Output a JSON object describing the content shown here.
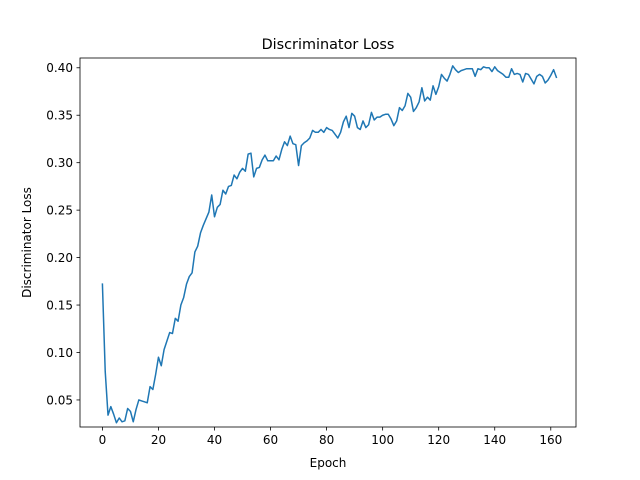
{
  "chart_data": {
    "type": "line",
    "title": "Discriminator Loss",
    "xlabel": "Epoch",
    "ylabel": "Discriminator Loss",
    "xlim": [
      -8,
      169
    ],
    "ylim": [
      0.0215,
      0.4103
    ],
    "xticks": [
      0,
      20,
      40,
      60,
      80,
      100,
      120,
      140,
      160
    ],
    "xtick_labels": [
      "0",
      "20",
      "40",
      "60",
      "80",
      "100",
      "120",
      "140",
      "160"
    ],
    "yticks": [
      0.05,
      0.1,
      0.15,
      0.2,
      0.25,
      0.3,
      0.35,
      0.4
    ],
    "ytick_labels": [
      "0.05",
      "0.10",
      "0.15",
      "0.20",
      "0.25",
      "0.30",
      "0.35",
      "0.40"
    ],
    "grid": false,
    "color": "#1f77b4",
    "series": [
      {
        "values": [
          0.172,
          0.08,
          0.034,
          0.043,
          0.035,
          0.026,
          0.031,
          0.027,
          0.028,
          0.041,
          0.038,
          0.027,
          0.04,
          0.05,
          0.049,
          0.048,
          0.047,
          0.064,
          0.061,
          0.077,
          0.095,
          0.086,
          0.103,
          0.112,
          0.121,
          0.12,
          0.136,
          0.133,
          0.15,
          0.158,
          0.172,
          0.18,
          0.184,
          0.206,
          0.212,
          0.226,
          0.234,
          0.241,
          0.248,
          0.266,
          0.243,
          0.253,
          0.256,
          0.271,
          0.267,
          0.275,
          0.276,
          0.287,
          0.283,
          0.29,
          0.294,
          0.291,
          0.309,
          0.31,
          0.285,
          0.294,
          0.295,
          0.303,
          0.308,
          0.302,
          0.302,
          0.302,
          0.307,
          0.303,
          0.314,
          0.322,
          0.318,
          0.328,
          0.32,
          0.319,
          0.297,
          0.318,
          0.321,
          0.323,
          0.326,
          0.334,
          0.332,
          0.332,
          0.335,
          0.332,
          0.337,
          0.335,
          0.334,
          0.33,
          0.326,
          0.332,
          0.343,
          0.349,
          0.337,
          0.352,
          0.349,
          0.337,
          0.335,
          0.344,
          0.337,
          0.34,
          0.353,
          0.345,
          0.348,
          0.348,
          0.35,
          0.351,
          0.351,
          0.346,
          0.339,
          0.344,
          0.358,
          0.355,
          0.36,
          0.373,
          0.369,
          0.354,
          0.358,
          0.364,
          0.379,
          0.365,
          0.369,
          0.366,
          0.381,
          0.372,
          0.38,
          0.393,
          0.389,
          0.386,
          0.393,
          0.402,
          0.398,
          0.395,
          0.397,
          0.398,
          0.399,
          0.399,
          0.399,
          0.391,
          0.399,
          0.398,
          0.401,
          0.4,
          0.4,
          0.396,
          0.401,
          0.397,
          0.395,
          0.393,
          0.39,
          0.39,
          0.399,
          0.393,
          0.394,
          0.393,
          0.385,
          0.394,
          0.393,
          0.388,
          0.383,
          0.391,
          0.393,
          0.391,
          0.384,
          0.387,
          0.392,
          0.398,
          0.39
        ]
      }
    ]
  }
}
